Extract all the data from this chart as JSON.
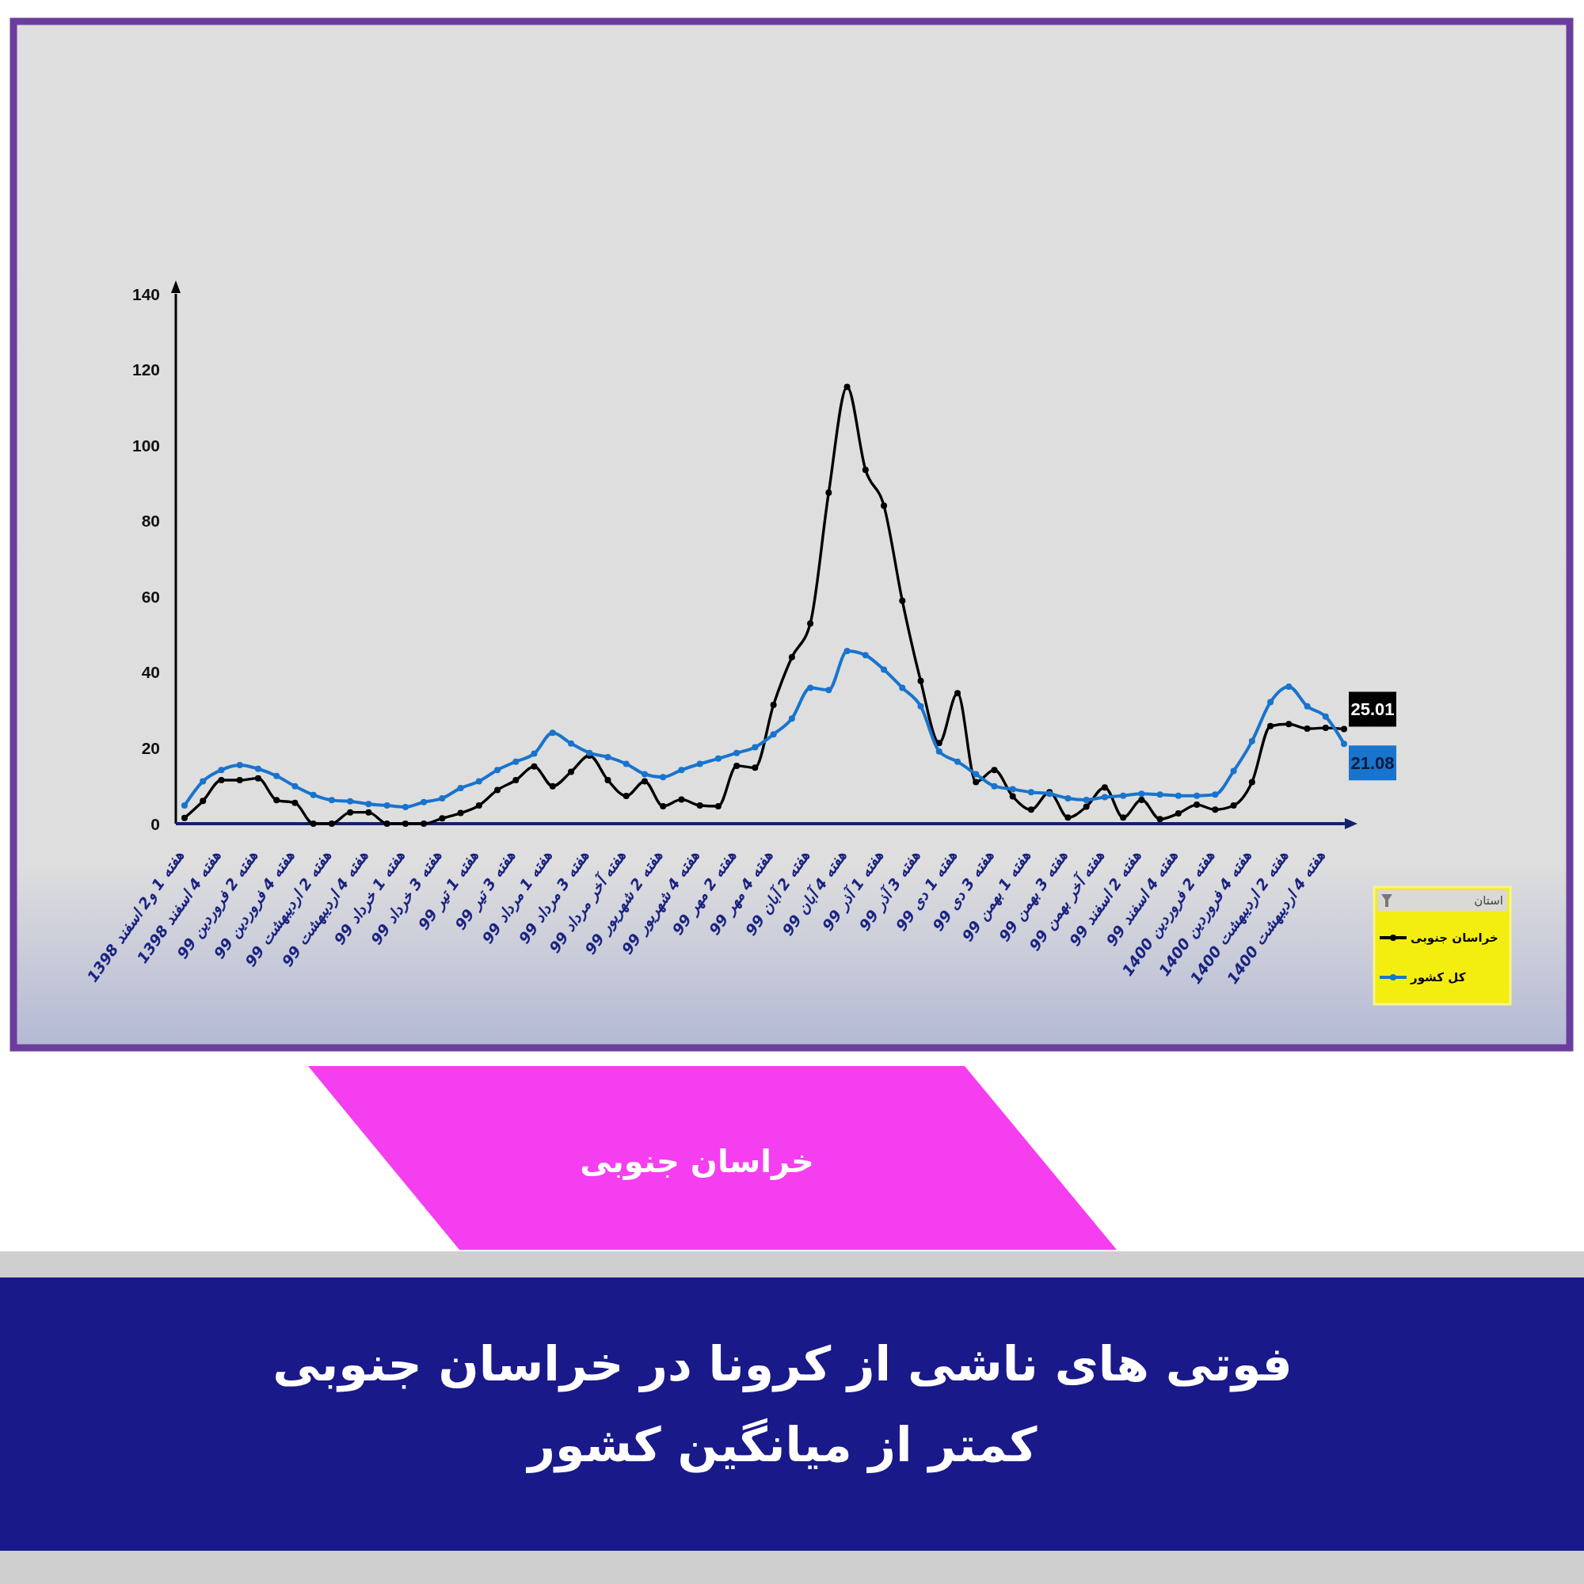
{
  "chart_data": {
    "type": "line",
    "title": "فوتی های ناشی از کرونا در خراسان جنوبی\nکمتر از میانگین کشور",
    "subtitle": "خراسان جنوبی",
    "legend_title": "استان",
    "categories": [
      "هفته 1 و2 اسفند 1398",
      null,
      "هفته 4 اسفند 1398",
      null,
      "هفته 2 فروردین 99",
      null,
      "هفته 4 فروردین 99",
      null,
      "هفته 2 اردیبهشت 99",
      null,
      "هفته 4 اردیبهشت 99",
      null,
      "هفته 1 خرداد 99",
      null,
      "هفته 3 خرداد 99",
      null,
      "هفته 1 تیر 99",
      null,
      "هفته 3 تیر 99",
      null,
      "هفته 1 مرداد 99",
      null,
      "هفته 3 مرداد 99",
      null,
      "هفته آخر مرداد 99",
      null,
      "هفته 2 شهریور 99",
      null,
      "هفته 4 شهریور 99",
      null,
      "هفته 2 مهر 99",
      null,
      "هفته 4 مهر 99",
      null,
      "هفته 2 آبان 99",
      null,
      "هفته 4 آبان 99",
      null,
      "هفته 1 آذر 99",
      null,
      "هفته 3 آذر 99",
      null,
      "هفته 1 دی 99",
      null,
      "هفته 3 دی 99",
      null,
      "هفته 1 بهمن 99",
      null,
      "هفته 3 بهمن 99",
      null,
      "هفته آخر بهمن 99",
      null,
      "هفته 2 اسفند 99",
      null,
      "هفته 4 اسفند 99",
      null,
      "هفته 2 فروردین 1400",
      null,
      "هفته 4 فروردین 1400",
      null,
      "هفته 2 اردیبهشت 1400",
      null,
      "هفته 4 اردیبهشت 1400",
      null
    ],
    "series": [
      {
        "name": "خراسان جنوبی",
        "color": "#000000",
        "values": [
          1.5,
          6,
          11.5,
          11.5,
          12,
          6.2,
          5.5,
          0,
          0,
          3,
          3,
          0,
          0,
          0,
          1.4,
          2.8,
          4.8,
          8.9,
          11.5,
          15.1,
          9.9,
          13.7,
          18,
          11.5,
          7.3,
          11.2,
          4.6,
          6.4,
          4.8,
          4.6,
          15.3,
          14.8,
          31.4,
          44,
          52.9,
          87.5,
          115.4,
          93.5,
          84,
          58.9,
          37.7,
          21.3,
          34.5,
          11,
          14.2,
          7.2,
          3.7,
          8.3,
          1.6,
          4.5,
          9.6,
          1.6,
          6.3,
          1.2,
          2.7,
          5,
          3.7,
          4.8,
          11,
          25.8,
          26.3,
          25.1,
          25.3,
          25.01
        ],
        "value_labels": [
          null,
          null,
          null,
          null,
          null,
          null,
          null,
          null,
          null,
          null,
          null,
          null,
          null,
          null,
          null,
          null,
          null,
          null,
          null,
          null,
          null,
          null,
          null,
          null,
          null,
          null,
          null,
          null,
          null,
          null,
          null,
          null,
          null,
          null,
          null,
          null,
          null,
          null,
          null,
          null,
          null,
          null,
          null,
          null,
          null,
          null,
          null,
          null,
          null,
          null,
          null,
          null,
          null,
          null,
          null,
          null,
          null,
          null,
          null,
          null,
          null,
          null,
          null,
          "25.01"
        ]
      },
      {
        "name": "کل کشور",
        "color": "#1874cd",
        "values": [
          4.8,
          11.2,
          14.2,
          15.5,
          14.5,
          12.6,
          9.9,
          7.6,
          6.2,
          5.9,
          5.2,
          4.8,
          4.4,
          5.7,
          6.7,
          9.4,
          11.2,
          14.2,
          16.4,
          18.5,
          24,
          21.2,
          18.7,
          17.6,
          15.8,
          13.1,
          12.3,
          14.2,
          15.8,
          17.2,
          18.7,
          20.2,
          23.6,
          27.8,
          35.9,
          35.3,
          45.6,
          44.5,
          40.7,
          35.9,
          31,
          19.1,
          16.4,
          13.1,
          9.9,
          9.1,
          8.3,
          7.9,
          6.7,
          6.3,
          7,
          7.4,
          7.9,
          7.7,
          7.4,
          7.4,
          7.7,
          13.9,
          21.8,
          32.1,
          36.2,
          31,
          28.3,
          21.08
        ],
        "value_labels": [
          null,
          null,
          null,
          null,
          null,
          null,
          null,
          null,
          null,
          null,
          null,
          null,
          null,
          null,
          null,
          null,
          null,
          null,
          null,
          null,
          null,
          null,
          null,
          null,
          null,
          null,
          null,
          null,
          null,
          null,
          null,
          null,
          null,
          null,
          null,
          null,
          null,
          null,
          null,
          null,
          null,
          null,
          null,
          null,
          null,
          null,
          null,
          null,
          null,
          null,
          null,
          null,
          null,
          null,
          null,
          null,
          null,
          null,
          null,
          null,
          null,
          null,
          null,
          "21.08"
        ]
      }
    ],
    "ylim": [
      0,
      140
    ],
    "yticks": [
      0,
      20,
      40,
      60,
      80,
      100,
      120,
      140
    ],
    "legend": "bottom right",
    "marker": "circle",
    "line_style": "solid"
  }
}
